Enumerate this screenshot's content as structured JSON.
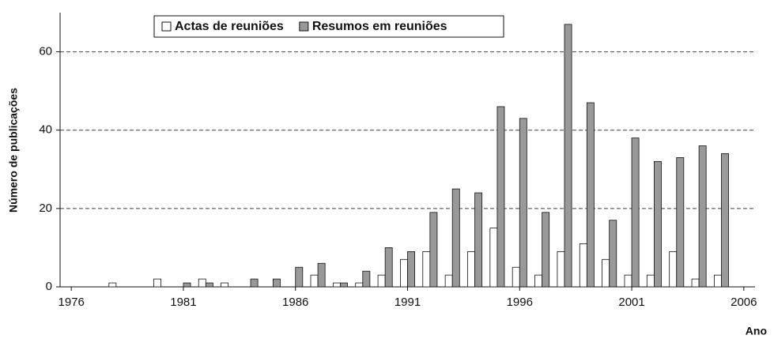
{
  "chart_data": {
    "type": "bar",
    "y_label": "Número de publicações",
    "x_label": "Ano",
    "categories": [
      "1976",
      null,
      null,
      null,
      null,
      "1981",
      null,
      null,
      null,
      null,
      "1986",
      null,
      null,
      null,
      null,
      "1991",
      null,
      null,
      null,
      null,
      "1996",
      null,
      null,
      null,
      null,
      "2001",
      null,
      null,
      null,
      null,
      "2006"
    ],
    "series": [
      {
        "name": "Actas de reuniões",
        "color": "#ffffff",
        "values": [
          0,
          0,
          1,
          0,
          2,
          0,
          2,
          1,
          0,
          0,
          0,
          3,
          1,
          1,
          3,
          7,
          9,
          3,
          9,
          15,
          5,
          3,
          9,
          11,
          7,
          3,
          3,
          9,
          2,
          3,
          null
        ]
      },
      {
        "name": "Resumos em reuniões",
        "color": "#999999",
        "values": [
          0,
          0,
          0,
          0,
          0,
          1,
          1,
          0,
          2,
          2,
          5,
          6,
          1,
          4,
          10,
          9,
          19,
          25,
          24,
          46,
          43,
          19,
          67,
          47,
          17,
          38,
          32,
          33,
          36,
          34,
          null
        ]
      }
    ],
    "ylim": [
      0,
      70
    ],
    "yticks": [
      0,
      20,
      40,
      60
    ],
    "grid": true,
    "legend": "top"
  }
}
